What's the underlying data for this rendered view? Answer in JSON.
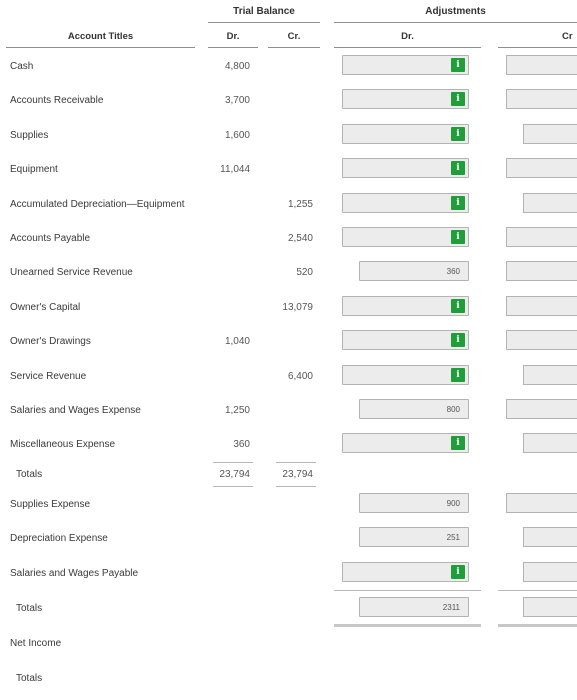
{
  "headers": {
    "trial_balance": "Trial Balance",
    "adjustments": "Adjustments",
    "account_titles": "Account Titles",
    "dr": "Dr.",
    "cr": "Cr.",
    "adj_dr": "Dr.",
    "adj_cr": "Cr"
  },
  "rows": [
    {
      "title": "Cash",
      "tb_dr": "4,800",
      "tb_cr": "",
      "adj_dr": "",
      "adj_dr_icon": "info-icon"
    },
    {
      "title": "Accounts Receivable",
      "tb_dr": "3,700",
      "tb_cr": "",
      "adj_dr": "",
      "adj_dr_icon": "info-icon"
    },
    {
      "title": "Supplies",
      "tb_dr": "1,600",
      "tb_cr": "",
      "adj_dr": "",
      "adj_dr_icon": "info-icon"
    },
    {
      "title": "Equipment",
      "tb_dr": "11,044",
      "tb_cr": "",
      "adj_dr": "",
      "adj_dr_icon": "info-icon"
    },
    {
      "title": "Accumulated Depreciation—Equipment",
      "tb_dr": "",
      "tb_cr": "1,255",
      "adj_dr": "",
      "adj_dr_icon": "info-icon"
    },
    {
      "title": "Accounts Payable",
      "tb_dr": "",
      "tb_cr": "2,540",
      "adj_dr": "",
      "adj_dr_icon": "info-icon"
    },
    {
      "title": "Unearned Service Revenue",
      "tb_dr": "",
      "tb_cr": "520",
      "adj_dr": "360",
      "adj_dr_icon": ""
    },
    {
      "title": "Owner's Capital",
      "tb_dr": "",
      "tb_cr": "13,079",
      "adj_dr": "",
      "adj_dr_icon": "info-icon"
    },
    {
      "title": "Owner's Drawings",
      "tb_dr": "1,040",
      "tb_cr": "",
      "adj_dr": "",
      "adj_dr_icon": "info-icon"
    },
    {
      "title": "Service Revenue",
      "tb_dr": "",
      "tb_cr": "6,400",
      "adj_dr": "",
      "adj_dr_icon": "info-icon"
    },
    {
      "title": "Salaries and Wages Expense",
      "tb_dr": "1,250",
      "tb_cr": "",
      "adj_dr": "800",
      "adj_dr_icon": ""
    },
    {
      "title": "Miscellaneous Expense",
      "tb_dr": "360",
      "tb_cr": "",
      "adj_dr": "",
      "adj_dr_icon": "info-icon"
    }
  ],
  "totals1": {
    "label": "Totals",
    "tb_dr": "23,794",
    "tb_cr": "23,794"
  },
  "rows2": [
    {
      "title": "Supplies Expense",
      "adj_dr": "900",
      "adj_dr_icon": ""
    },
    {
      "title": "Depreciation Expense",
      "adj_dr": "251",
      "adj_dr_icon": ""
    },
    {
      "title": "Salaries and Wages Payable",
      "adj_dr": "",
      "adj_dr_icon": "info-icon"
    }
  ],
  "totals2": {
    "label": "Totals",
    "adj_dr": "2311"
  },
  "net_income": {
    "label": "Net Income"
  },
  "totals3": {
    "label": "Totals"
  },
  "info_glyph": "i",
  "colors": {
    "info_green": "#1f9e3a",
    "input_bg": "#ececec"
  }
}
